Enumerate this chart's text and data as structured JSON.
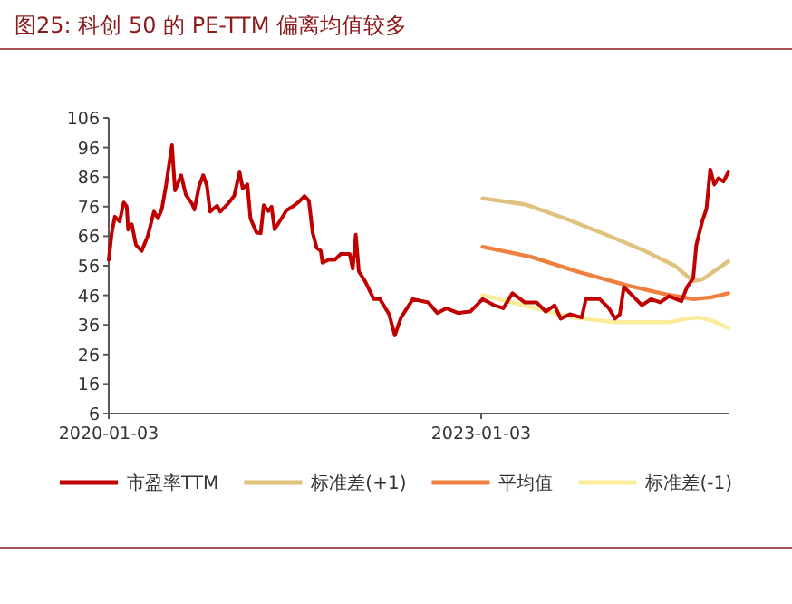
{
  "chart_data": {
    "type": "line",
    "title": "图25:   科创 50 的 PE-TTM 偏离均值较多",
    "xlim": [
      "2020-01-03",
      "2024-12-31"
    ],
    "xticks": [
      "2020-01-03",
      "2023-01-03"
    ],
    "ylim": [
      6,
      106
    ],
    "yticks": [
      6,
      16,
      26,
      36,
      46,
      56,
      66,
      76,
      86,
      96,
      106
    ],
    "legend": "bottom",
    "series": [
      {
        "name": "市盈率TTM",
        "color": "#c00000",
        "x": [
          "2020-01-03",
          "2020-01-12",
          "2020-01-21",
          "2020-02-04",
          "2020-02-16",
          "2020-02-25",
          "2020-02-29",
          "2020-03-11",
          "2020-03-23",
          "2020-04-09",
          "2020-04-27",
          "2020-05-15",
          "2020-05-27",
          "2020-06-07",
          "2020-06-20",
          "2020-07-07",
          "2020-07-16",
          "2020-07-25",
          "2020-08-03",
          "2020-08-17",
          "2020-09-04",
          "2020-09-11",
          "2020-09-25",
          "2020-10-07",
          "2020-10-18",
          "2020-10-27",
          "2020-11-17",
          "2020-11-26",
          "2020-12-19",
          "2021-01-06",
          "2021-01-22",
          "2021-01-31",
          "2021-02-14",
          "2021-02-23",
          "2021-03-13",
          "2021-03-25",
          "2021-04-03",
          "2021-04-17",
          "2021-04-26",
          "2021-05-05",
          "2021-05-17",
          "2021-06-09",
          "2021-06-27",
          "2021-07-15",
          "2021-08-01",
          "2021-08-14",
          "2021-08-25",
          "2021-09-06",
          "2021-09-18",
          "2021-09-23",
          "2021-10-11",
          "2021-10-29",
          "2021-11-16",
          "2021-12-12",
          "2021-12-21",
          "2021-12-30",
          "2022-01-08",
          "2022-01-26",
          "2022-02-21",
          "2022-03-11",
          "2022-04-07",
          "2022-04-24",
          "2022-05-12",
          "2022-06-16",
          "2022-07-31",
          "2022-08-27",
          "2022-09-22",
          "2022-10-27",
          "2022-12-02",
          "2023-01-07",
          "2023-02-11",
          "2023-03-09",
          "2023-04-05",
          "2023-05-11",
          "2023-06-15",
          "2023-07-12",
          "2023-08-07",
          "2023-08-25",
          "2023-09-21",
          "2023-10-26",
          "2023-11-07",
          "2023-12-18",
          "2024-01-14",
          "2024-02-01",
          "2024-02-15",
          "2024-02-27",
          "2024-03-25",
          "2024-04-20",
          "2024-05-17",
          "2024-06-13",
          "2024-07-09",
          "2024-08-14",
          "2024-08-31",
          "2024-09-18",
          "2024-09-27",
          "2024-10-15",
          "2024-10-27",
          "2024-11-07",
          "2024-11-19",
          "2024-12-01",
          "2024-12-16",
          "2024-12-30"
        ],
        "values": [
          58,
          67.2,
          72.6,
          71,
          77.4,
          76,
          68.2,
          70,
          63,
          61,
          66.1,
          74.3,
          72,
          75,
          83.5,
          96.8,
          81.5,
          84,
          86.6,
          80,
          77,
          75,
          83,
          86.6,
          83,
          74.3,
          76.3,
          74.3,
          77,
          79.6,
          87.6,
          82.2,
          83.5,
          72,
          67.2,
          67,
          76.5,
          74.5,
          76,
          68.3,
          70.5,
          74.7,
          76,
          77.6,
          79.6,
          78,
          67.2,
          62,
          61,
          57,
          58,
          58,
          60,
          60,
          55,
          66.5,
          54,
          50.8,
          44.7,
          44.7,
          39.6,
          32.4,
          38.5,
          44.7,
          43.6,
          40,
          41.6,
          40,
          40.5,
          44.7,
          42.6,
          41.6,
          46.7,
          43.6,
          43.6,
          40.5,
          42.6,
          38.1,
          39.6,
          38.5,
          44.7,
          44.7,
          41.6,
          38.1,
          39.6,
          48.8,
          45.7,
          42.6,
          44.7,
          43.6,
          45.7,
          44,
          48.8,
          51.8,
          63,
          71.2,
          75.3,
          88.6,
          83.5,
          85.6,
          84.5,
          87.6
        ]
      },
      {
        "name": "标准差(+1)",
        "color": "#dfc27d",
        "x": [
          "2023-01-07",
          "2023-05-11",
          "2023-09-12",
          "2024-01-14",
          "2024-04-29",
          "2024-07-27",
          "2024-09-18",
          "2024-10-15",
          "2024-11-28",
          "2024-12-30"
        ],
        "values": [
          78.8,
          76.8,
          71.8,
          66.1,
          61,
          55.9,
          50.8,
          51.4,
          54.9,
          57.5
        ]
      },
      {
        "name": "平均值",
        "color": "#f08040",
        "x": [
          "2023-01-07",
          "2023-05-29",
          "2023-10-17",
          "2024-03-07",
          "2024-07-09",
          "2024-09-18",
          "2024-11-10",
          "2024-12-30"
        ],
        "values": [
          62.4,
          59,
          53.9,
          49.4,
          46.1,
          44.7,
          45.3,
          46.7
        ]
      },
      {
        "name": "标准差(-1)",
        "color": "#fbec9c",
        "x": [
          "2023-01-07",
          "2023-05-29",
          "2023-09-30",
          "2024-02-01",
          "2024-07-09",
          "2024-08-31",
          "2024-10-06",
          "2024-11-10",
          "2024-12-30"
        ],
        "values": [
          46.1,
          42,
          38.5,
          36.9,
          36.9,
          38.1,
          38.5,
          37.5,
          35
        ]
      }
    ]
  }
}
